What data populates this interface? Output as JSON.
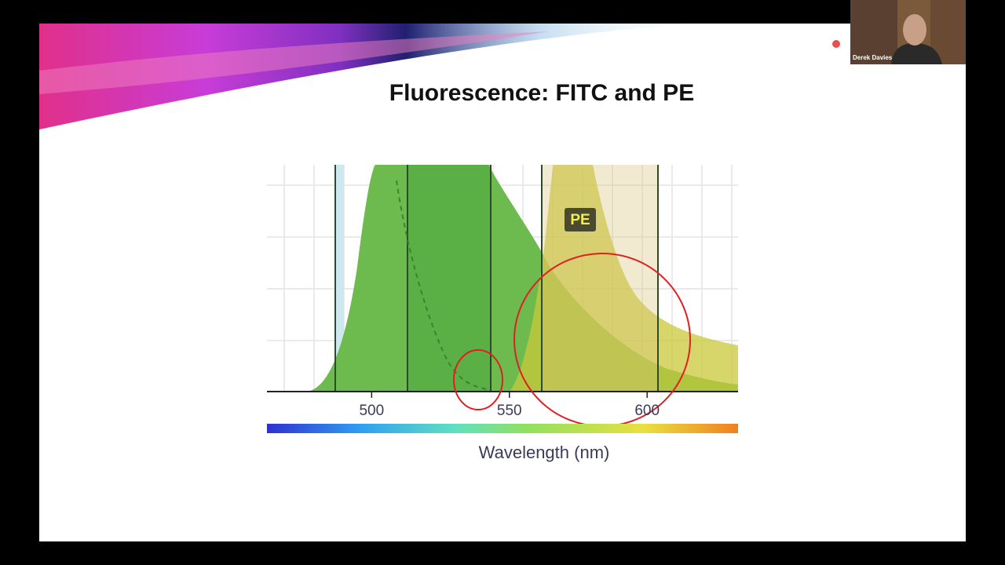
{
  "slide": {
    "title": "Fluorescence: FITC and PE"
  },
  "participant": {
    "name": "Derek Davies"
  },
  "chart_data": {
    "type": "spectrum",
    "xlabel": "Wavelength (nm)",
    "annotation": "PE",
    "xlim": [
      462,
      633
    ],
    "xticks": [
      500,
      550,
      600
    ]
  }
}
